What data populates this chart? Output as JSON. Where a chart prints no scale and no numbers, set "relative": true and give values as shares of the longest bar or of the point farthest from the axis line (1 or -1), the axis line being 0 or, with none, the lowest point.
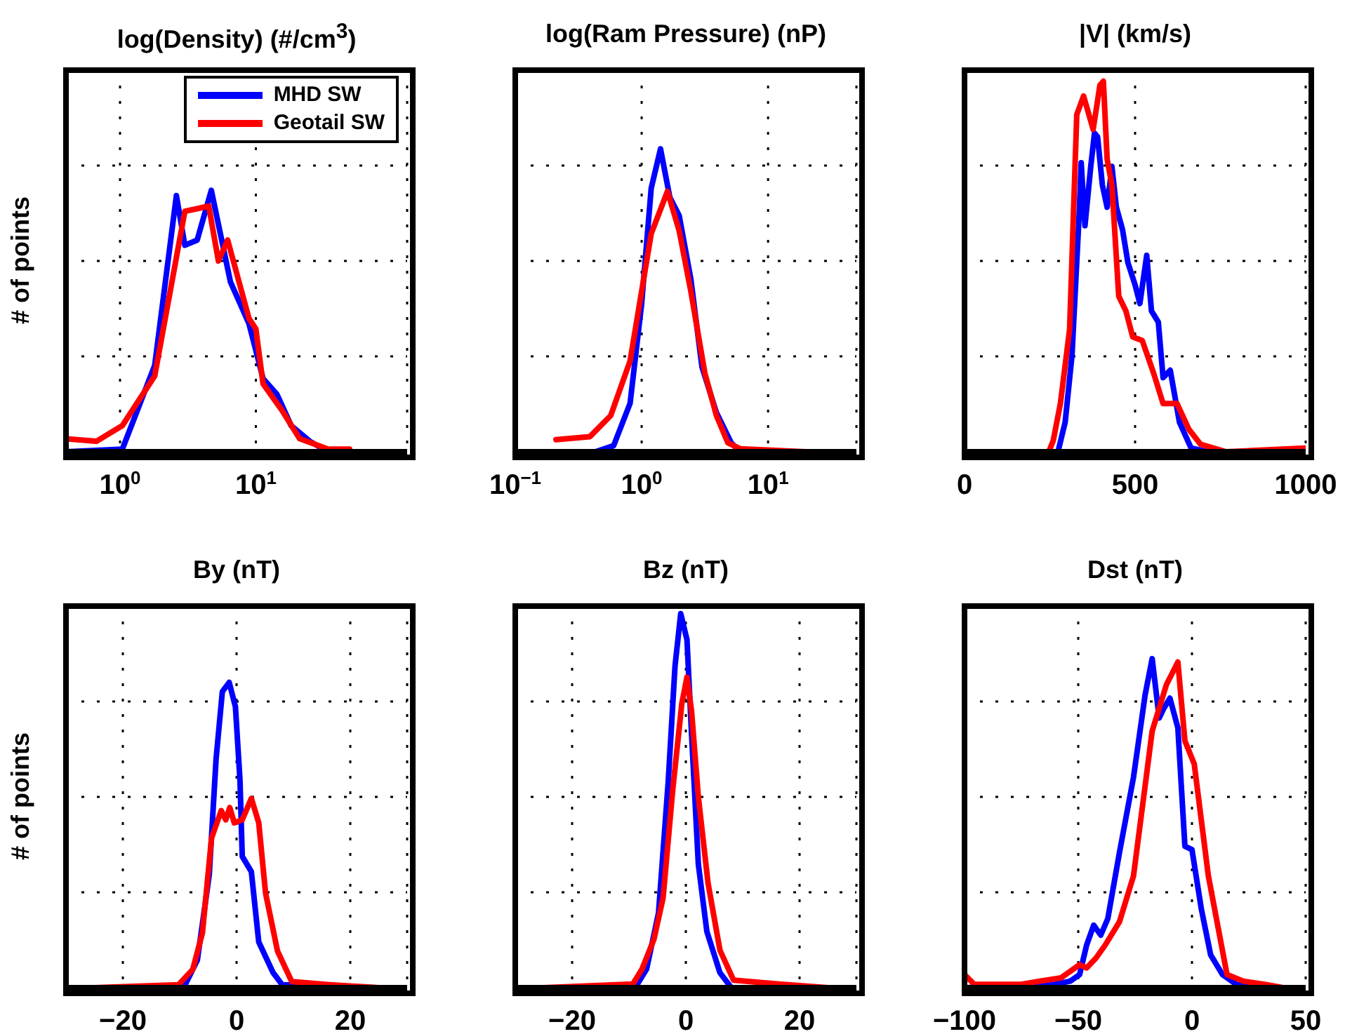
{
  "chart_data": [
    {
      "type": "line",
      "title": "log(Density) (#/cm$^{3}$)",
      "ylabel": "# of points",
      "relative": true,
      "log": "x",
      "xlim": [
        0.4,
        130
      ],
      "xticks": [
        {
          "value": 1,
          "label": "10$^{0}$"
        },
        {
          "value": 10,
          "label": "10$^{1}$"
        }
      ],
      "grid": true,
      "legend": "top right",
      "line_style": "solid",
      "series": [
        {
          "name": "MHD SW",
          "color": "#0000ff",
          "x": [
            0.4,
            1.04,
            1.8,
            2.6,
            3.0,
            3.7,
            4.7,
            6.5,
            8.9,
            11.3,
            14.3,
            18.2,
            25,
            34
          ],
          "values": [
            0,
            0.01,
            0.33,
            0.98,
            0.79,
            0.81,
            1,
            0.65,
            0.49,
            0.28,
            0.22,
            0.1,
            0.04,
            0
          ]
        },
        {
          "name": "Geotail SW",
          "color": "#ff0000",
          "x": [
            0.4,
            0.67,
            1.04,
            1.8,
            3.0,
            3.7,
            4.5,
            5.3,
            6.2,
            8.9,
            10,
            11.3,
            15.5,
            21,
            34,
            49
          ],
          "values": [
            0.05,
            0.04,
            0.1,
            0.29,
            0.92,
            0.93,
            0.94,
            0.73,
            0.81,
            0.51,
            0.47,
            0.26,
            0.16,
            0.05,
            0.01,
            0.01
          ]
        }
      ]
    },
    {
      "type": "line",
      "title": "log(Ram Pressure) (nP)",
      "relative": true,
      "log": "x",
      "xlim": [
        0.1,
        50
      ],
      "xticks": [
        {
          "value": 0.1,
          "label": "10$^{−1}$"
        },
        {
          "value": 1,
          "label": "10$^{0}$"
        },
        {
          "value": 10,
          "label": "10$^{1}$"
        }
      ],
      "grid": true,
      "line_style": "solid",
      "series": [
        {
          "color": "#0000ff",
          "x": [
            0.21,
            0.43,
            0.6,
            0.81,
            1.0,
            1.19,
            1.41,
            1.67,
            1.98,
            2.45,
            3.0,
            3.9,
            5.1,
            6.0,
            19.8
          ],
          "values": [
            0,
            0,
            0.02,
            0.16,
            0.49,
            0.87,
            1,
            0.84,
            0.78,
            0.57,
            0.28,
            0.13,
            0.03,
            0,
            0
          ]
        },
        {
          "color": "#ff0000",
          "x": [
            0.21,
            0.39,
            0.57,
            0.81,
            1.19,
            1.6,
            1.98,
            2.45,
            3.16,
            3.9,
            4.8,
            6.0,
            19.8
          ],
          "values": [
            0.04,
            0.05,
            0.12,
            0.3,
            0.72,
            0.86,
            0.73,
            0.53,
            0.26,
            0.12,
            0.03,
            0.01,
            0
          ]
        }
      ]
    },
    {
      "type": "line",
      "title": "|V| (km/s)",
      "relative": true,
      "xlim": [
        0,
        1000
      ],
      "xticks": [
        0,
        500,
        1000
      ],
      "grid": true,
      "line_style": "solid",
      "series": [
        {
          "color": "#0000ff",
          "x": [
            0,
            274,
            295,
            315,
            336,
            342,
            353,
            370,
            381,
            390,
            404,
            418,
            432,
            445,
            463,
            479,
            500,
            514,
            534,
            548,
            568,
            582,
            603,
            630,
            664,
            712,
            1000
          ],
          "values": [
            0,
            0,
            0.08,
            0.26,
            0.64,
            0.78,
            0.61,
            0.77,
            0.86,
            0.85,
            0.72,
            0.66,
            0.77,
            0.66,
            0.6,
            0.51,
            0.45,
            0.4,
            0.53,
            0.38,
            0.35,
            0.2,
            0.22,
            0.08,
            0.01,
            0,
            0
          ]
        },
        {
          "color": "#ff0000",
          "x": [
            0,
            247,
            260,
            281,
            308,
            329,
            349,
            377,
            397,
            407,
            418,
            432,
            452,
            473,
            493,
            521,
            555,
            582,
            623,
            658,
            692,
            767,
            1000
          ],
          "values": [
            0,
            0,
            0.03,
            0.13,
            0.33,
            0.91,
            0.96,
            0.87,
            0.99,
            1,
            0.79,
            0.72,
            0.42,
            0.38,
            0.31,
            0.3,
            0.21,
            0.13,
            0.13,
            0.06,
            0.02,
            0,
            0.01
          ]
        }
      ]
    },
    {
      "type": "line",
      "title": "By (nT)",
      "ylabel": "# of points",
      "relative": true,
      "xlim": [
        -30,
        30
      ],
      "xticks": [
        {
          "value": -20,
          "label": "−20"
        },
        0,
        20
      ],
      "grid": true,
      "line_style": "solid",
      "series": [
        {
          "color": "#0000ff",
          "x": [
            -25,
            -9.3,
            -6.9,
            -4.8,
            -3.6,
            -2.5,
            -1.3,
            -0.2,
            0.6,
            1.0,
            2.6,
            3.9,
            6.4,
            8.0,
            24.5
          ],
          "values": [
            0,
            0,
            0.09,
            0.37,
            0.75,
            0.97,
            1,
            0.92,
            0.68,
            0.43,
            0.38,
            0.15,
            0.05,
            0.01,
            0
          ]
        },
        {
          "color": "#ff0000",
          "x": [
            -25,
            -10.2,
            -7.7,
            -6.0,
            -4.4,
            -2.7,
            -1.9,
            -1.2,
            -0.4,
            1.0,
            2.6,
            3.9,
            5.1,
            7.2,
            9.7,
            16.3,
            25
          ],
          "values": [
            0,
            0.01,
            0.06,
            0.18,
            0.49,
            0.58,
            0.55,
            0.59,
            0.54,
            0.55,
            0.62,
            0.54,
            0.31,
            0.12,
            0.02,
            0.01,
            0
          ]
        }
      ]
    },
    {
      "type": "line",
      "title": "Bz (nT)",
      "relative": true,
      "xlim": [
        -30,
        30
      ],
      "xticks": [
        {
          "value": -20,
          "label": "−20"
        },
        0,
        20
      ],
      "grid": true,
      "line_style": "solid",
      "series": [
        {
          "color": "#0000ff",
          "x": [
            -25,
            -8.9,
            -6.9,
            -4.8,
            -3.1,
            -1.9,
            -0.9,
            0.2,
            1.0,
            2.2,
            3.7,
            6.0,
            8.0,
            24.5
          ],
          "values": [
            0,
            0,
            0.05,
            0.2,
            0.55,
            0.86,
            1,
            0.93,
            0.68,
            0.33,
            0.15,
            0.04,
            0,
            0
          ]
        },
        {
          "color": "#ff0000",
          "x": [
            -25,
            -9.3,
            -7.7,
            -5.6,
            -4.0,
            -2.3,
            -0.7,
            0.2,
            1.0,
            2.2,
            3.9,
            6.0,
            8.4,
            16.3,
            25
          ],
          "values": [
            0,
            0.01,
            0.05,
            0.13,
            0.24,
            0.53,
            0.76,
            0.83,
            0.74,
            0.51,
            0.28,
            0.1,
            0.02,
            0.01,
            0
          ]
        }
      ]
    },
    {
      "type": "line",
      "title": "Dst (nT)",
      "relative": true,
      "xlim": [
        -100,
        50
      ],
      "xticks": [
        {
          "value": -100,
          "label": "−100"
        },
        {
          "value": -50,
          "label": "−50"
        },
        0,
        50
      ],
      "grid": true,
      "line_style": "solid",
      "series": [
        {
          "color": "#0000ff",
          "x": [
            -100,
            -60.7,
            -53.5,
            -49.4,
            -46.3,
            -43.2,
            -40.1,
            -37.0,
            -31.9,
            -25.7,
            -20.6,
            -17.5,
            -14.4,
            -12.3,
            -9.7,
            -6.2,
            -3.1,
            0,
            4.1,
            8.2,
            13.4,
            19.5,
            27.8
          ],
          "values": [
            0,
            0.01,
            0.02,
            0.04,
            0.13,
            0.19,
            0.16,
            0.21,
            0.41,
            0.64,
            0.89,
            1,
            0.82,
            0.85,
            0.88,
            0.79,
            0.43,
            0.42,
            0.24,
            0.1,
            0.04,
            0.01,
            0
          ]
        },
        {
          "color": "#ff0000",
          "x": [
            -100,
            -95.7,
            -85.4,
            -75.1,
            -66.9,
            -57.6,
            -49.4,
            -46.3,
            -42.2,
            -38.1,
            -31.9,
            -25.7,
            -17.5,
            -11.3,
            -6.2,
            -3.1,
            1.0,
            7.2,
            15.4,
            22.6,
            31.9,
            40.1
          ],
          "values": [
            0.04,
            0.01,
            0.01,
            0.01,
            0.02,
            0.03,
            0.07,
            0.06,
            0.09,
            0.13,
            0.2,
            0.34,
            0.78,
            0.92,
            0.99,
            0.75,
            0.68,
            0.34,
            0.04,
            0.02,
            0.01,
            0
          ]
        }
      ]
    }
  ]
}
